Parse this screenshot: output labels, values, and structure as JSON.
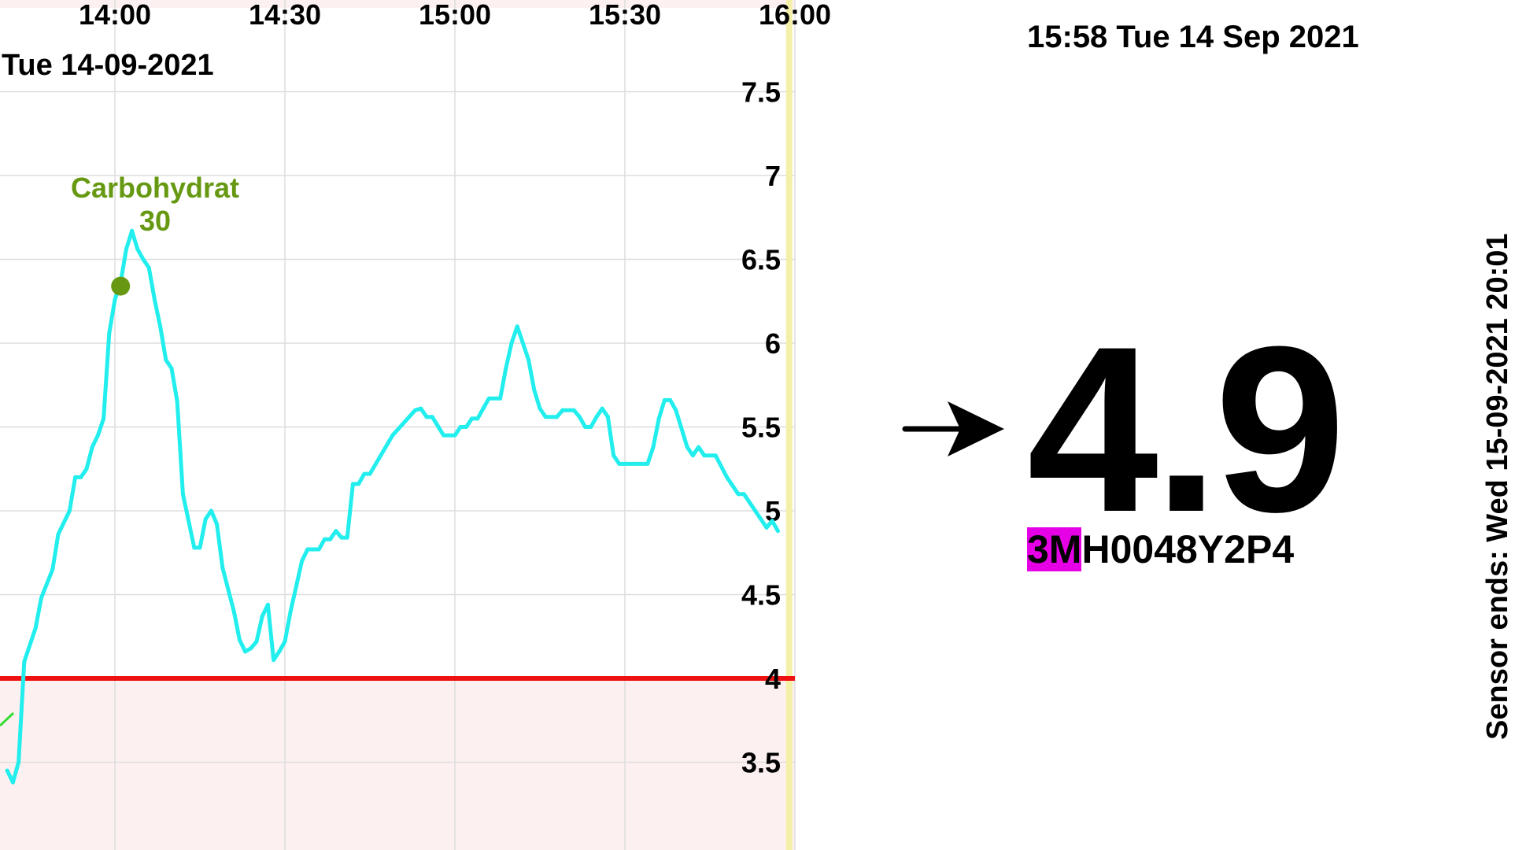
{
  "graph": {
    "date_label": "Tue 14-09-2021",
    "x_ticks": [
      "14:00",
      "14:30",
      "15:00",
      "15:30",
      "16:00"
    ],
    "y_ticks": [
      "7.5",
      "7",
      "6.5",
      "6",
      "5.5",
      "5",
      "4.5",
      "4",
      "3.5"
    ],
    "low_threshold": 4,
    "colors": {
      "glucose_line": "#22eeee",
      "low_line": "#ee1111",
      "low_zone": "#fdf0f0",
      "current_time_marker": "#f5f0a8",
      "annotation": "#669911",
      "secondary_line": "#33dd33",
      "grid": "#dddddd"
    },
    "annotation": {
      "label": "Carbohydrat",
      "value": "30"
    }
  },
  "chart_data": {
    "type": "line",
    "x_unit": "time (HH:MM)",
    "y_unit": "mmol/L",
    "xlim": [
      "13:41",
      "16:02"
    ],
    "ylim": [
      3.0,
      8.0
    ],
    "low_threshold": 4,
    "series": [
      {
        "points": [
          [
            "13:41",
            3.45
          ],
          [
            "13:42",
            3.38
          ],
          [
            "13:43",
            3.5
          ],
          [
            "13:44",
            4.1
          ],
          [
            "13:46",
            4.3
          ],
          [
            "13:47",
            4.48
          ],
          [
            "13:49",
            4.65
          ],
          [
            "13:50",
            4.86
          ],
          [
            "13:52",
            5.0
          ],
          [
            "13:53",
            5.2
          ],
          [
            "13:54",
            5.2
          ],
          [
            "13:55",
            5.25
          ],
          [
            "13:56",
            5.38
          ],
          [
            "13:57",
            5.45
          ],
          [
            "13:58",
            5.55
          ],
          [
            "13:59",
            6.06
          ],
          [
            "14:00",
            6.26
          ],
          [
            "14:01",
            6.36
          ],
          [
            "14:02",
            6.56
          ],
          [
            "14:03",
            6.67
          ],
          [
            "14:04",
            6.56
          ],
          [
            "14:05",
            6.5
          ],
          [
            "14:06",
            6.45
          ],
          [
            "14:07",
            6.26
          ],
          [
            "14:08",
            6.1
          ],
          [
            "14:09",
            5.9
          ],
          [
            "14:10",
            5.85
          ],
          [
            "14:11",
            5.65
          ],
          [
            "14:12",
            5.1
          ],
          [
            "14:14",
            4.78
          ],
          [
            "14:15",
            4.78
          ],
          [
            "14:16",
            4.95
          ],
          [
            "14:17",
            5.0
          ],
          [
            "14:18",
            4.92
          ],
          [
            "14:19",
            4.66
          ],
          [
            "14:21",
            4.4
          ],
          [
            "14:22",
            4.23
          ],
          [
            "14:23",
            4.16
          ],
          [
            "14:24",
            4.18
          ],
          [
            "14:25",
            4.22
          ],
          [
            "14:26",
            4.37
          ],
          [
            "14:27",
            4.44
          ],
          [
            "14:28",
            4.11
          ],
          [
            "14:29",
            4.16
          ],
          [
            "14:30",
            4.22
          ],
          [
            "14:31",
            4.4
          ],
          [
            "14:33",
            4.7
          ],
          [
            "14:34",
            4.77
          ],
          [
            "14:36",
            4.77
          ],
          [
            "14:37",
            4.83
          ],
          [
            "14:38",
            4.83
          ],
          [
            "14:39",
            4.88
          ],
          [
            "14:40",
            4.84
          ],
          [
            "14:41",
            4.84
          ],
          [
            "14:42",
            5.16
          ],
          [
            "14:43",
            5.16
          ],
          [
            "14:44",
            5.22
          ],
          [
            "14:45",
            5.22
          ],
          [
            "14:49",
            5.45
          ],
          [
            "14:53",
            5.6
          ],
          [
            "14:54",
            5.61
          ],
          [
            "14:55",
            5.56
          ],
          [
            "14:56",
            5.56
          ],
          [
            "14:58",
            5.45
          ],
          [
            "15:00",
            5.45
          ],
          [
            "15:01",
            5.5
          ],
          [
            "15:02",
            5.5
          ],
          [
            "15:03",
            5.55
          ],
          [
            "15:04",
            5.55
          ],
          [
            "15:06",
            5.67
          ],
          [
            "15:08",
            5.67
          ],
          [
            "15:09",
            5.85
          ],
          [
            "15:10",
            6.0
          ],
          [
            "15:11",
            6.1
          ],
          [
            "15:12",
            6.0
          ],
          [
            "15:13",
            5.9
          ],
          [
            "15:14",
            5.72
          ],
          [
            "15:15",
            5.61
          ],
          [
            "15:16",
            5.56
          ],
          [
            "15:18",
            5.56
          ],
          [
            "15:19",
            5.6
          ],
          [
            "15:21",
            5.6
          ],
          [
            "15:22",
            5.56
          ],
          [
            "15:23",
            5.5
          ],
          [
            "15:24",
            5.5
          ],
          [
            "15:25",
            5.56
          ],
          [
            "15:26",
            5.61
          ],
          [
            "15:27",
            5.56
          ],
          [
            "15:28",
            5.33
          ],
          [
            "15:29",
            5.28
          ],
          [
            "15:34",
            5.28
          ],
          [
            "15:35",
            5.38
          ],
          [
            "15:36",
            5.55
          ],
          [
            "15:37",
            5.66
          ],
          [
            "15:38",
            5.66
          ],
          [
            "15:39",
            5.6
          ],
          [
            "15:41",
            5.38
          ],
          [
            "15:42",
            5.33
          ],
          [
            "15:43",
            5.38
          ],
          [
            "15:44",
            5.33
          ],
          [
            "15:46",
            5.33
          ],
          [
            "15:48",
            5.2
          ],
          [
            "15:50",
            5.1
          ],
          [
            "15:51",
            5.1
          ],
          [
            "15:52",
            5.05
          ],
          [
            "15:53",
            5.0
          ],
          [
            "15:55",
            4.9
          ],
          [
            "15:56",
            4.94
          ],
          [
            "15:57",
            4.88
          ]
        ]
      }
    ],
    "annotations": [
      {
        "time": "14:01",
        "value": 6.34,
        "label": "Carbohydrat",
        "amount": 30
      }
    ],
    "current_time_marker": "15:59",
    "grid": true
  },
  "status": {
    "datetime": "15:58 Tue 14 Sep 2021",
    "trend_icon": "arrow-right-icon",
    "glucose_value": "4.9",
    "serial_highlight": "3M",
    "serial_rest": "H0048Y2P4",
    "serial_highlight_color": "#e600e6",
    "sensor_ends": "Sensor ends: Wed 15-09-2021 20:01"
  }
}
